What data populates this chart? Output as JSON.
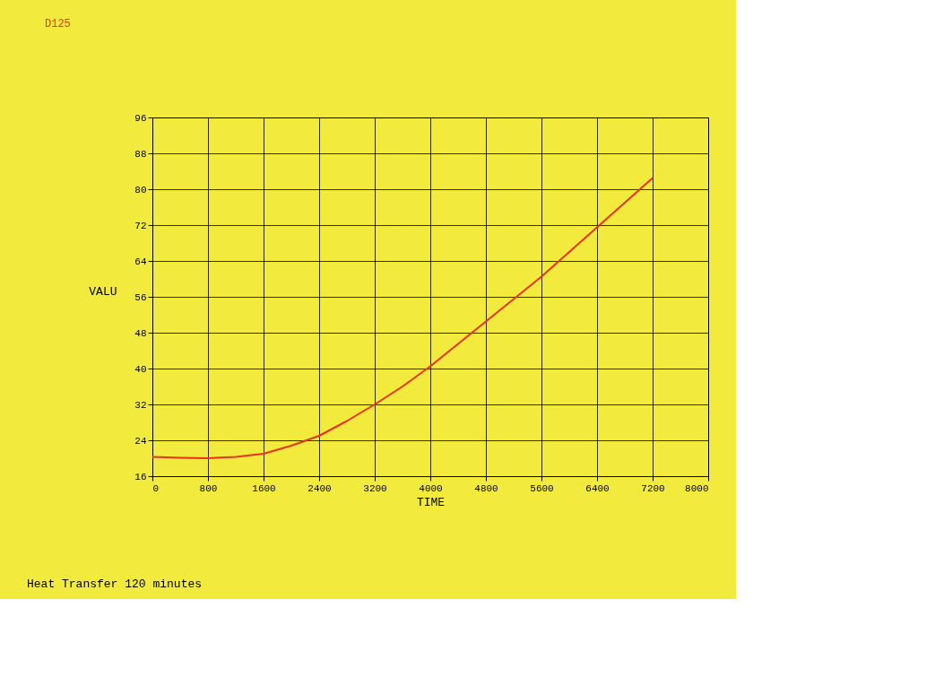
{
  "chart_data": {
    "type": "line",
    "xlabel": "TIME",
    "ylabel": "VALU",
    "x": [
      0,
      400,
      800,
      1200,
      1600,
      2000,
      2400,
      2800,
      3200,
      3600,
      4000,
      4400,
      4800,
      5200,
      5600,
      6000,
      6400,
      6800,
      7200
    ],
    "series": [
      {
        "name": "D125",
        "color": "#e8331c",
        "values": [
          20.3,
          20.1,
          20.0,
          20.3,
          21.0,
          22.8,
          25.0,
          28.3,
          32.0,
          36.0,
          40.5,
          45.5,
          50.5,
          55.5,
          60.5,
          66.0,
          71.5,
          77.0,
          82.5
        ]
      }
    ],
    "xlim": [
      0,
      8000
    ],
    "xticks": [
      0,
      800,
      1600,
      2400,
      3200,
      4000,
      4800,
      5600,
      6400,
      7200,
      8000
    ],
    "ylim": [
      16,
      96
    ],
    "yticks": [
      16,
      24,
      32,
      40,
      48,
      56,
      64,
      72,
      80,
      88,
      96
    ],
    "grid": true,
    "legend": "top left",
    "marker": "none",
    "line_style": "solid",
    "annotations": [
      "Heat Transfer 120 minutes"
    ]
  }
}
